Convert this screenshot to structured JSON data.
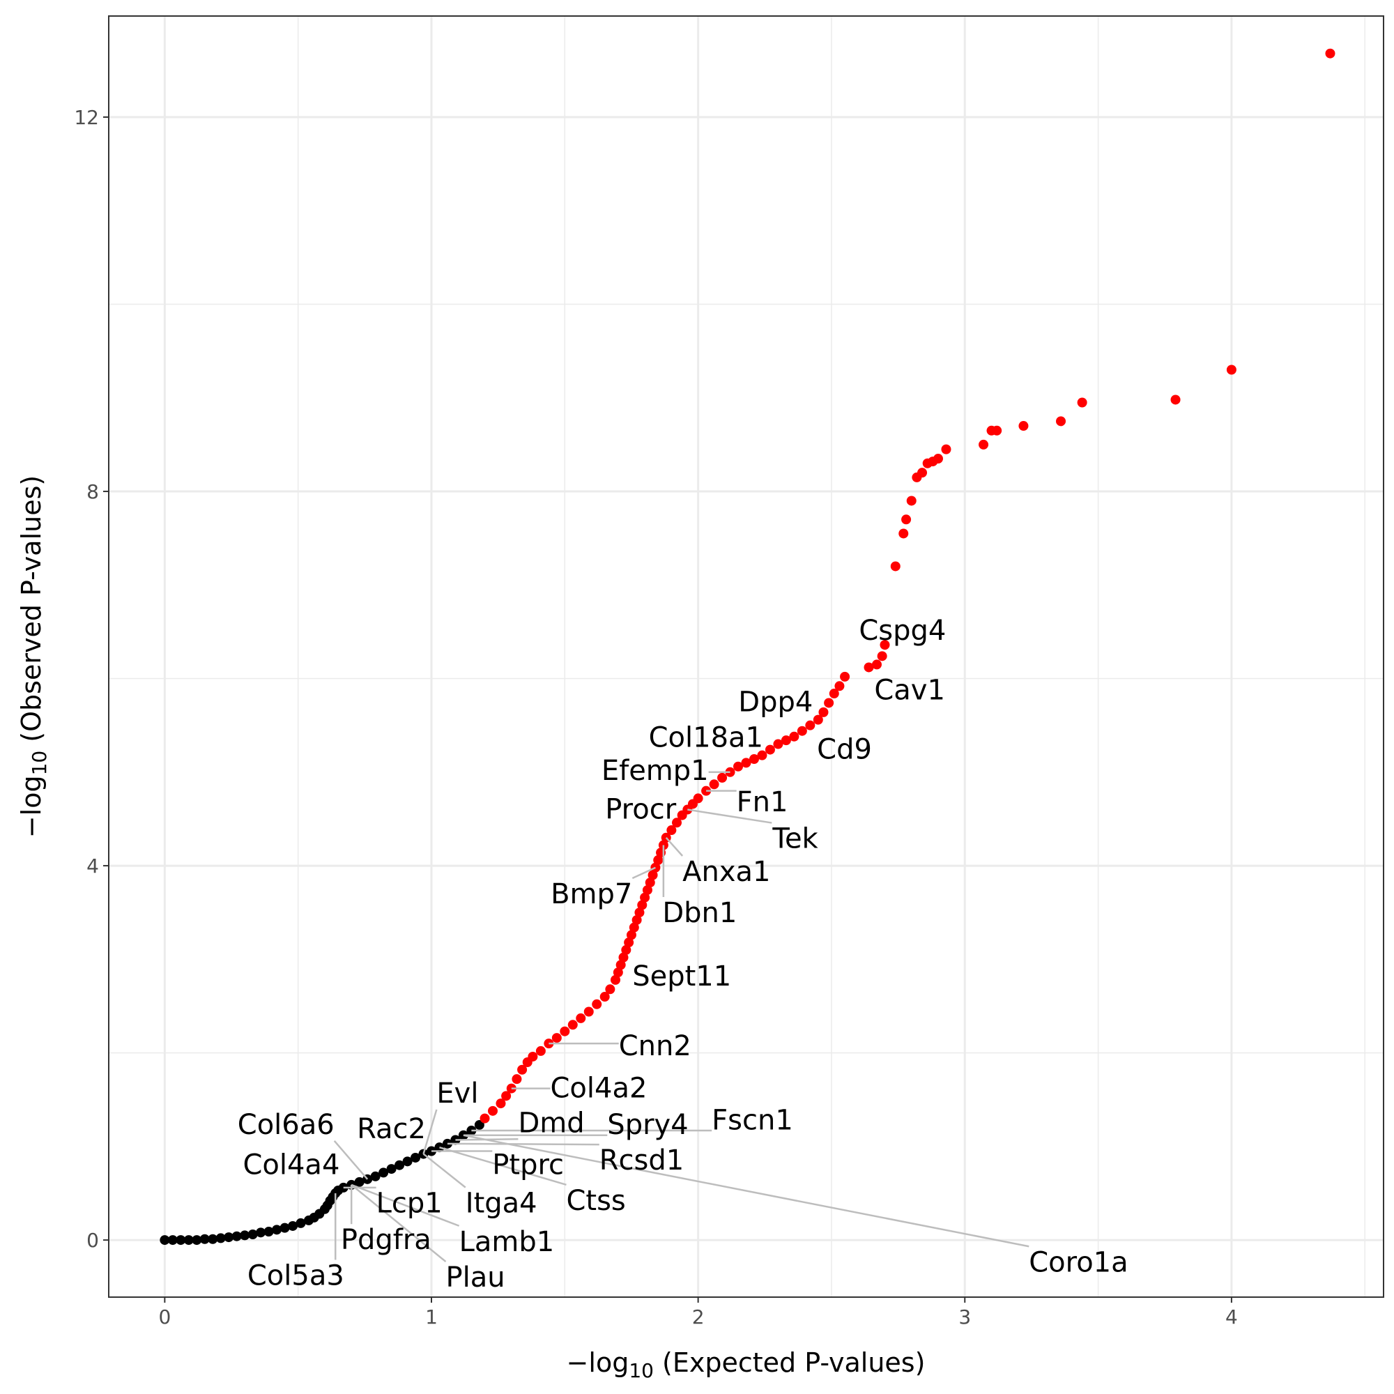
{
  "chart_data": {
    "type": "scatter",
    "xlabel": [
      "−log",
      "10",
      " (Expected P-values)"
    ],
    "ylabel": [
      "−log",
      "10",
      " (Observed P-values)"
    ],
    "xlim": [
      -0.21,
      4.57
    ],
    "ylim": [
      -0.61,
      13.08
    ],
    "xticks": [
      0,
      1,
      2,
      3,
      4
    ],
    "yticks": [
      0,
      4,
      8,
      12
    ],
    "xminorticks": [
      0.5,
      1.5,
      2.5,
      3.5,
      4.5
    ],
    "yminorticks": [
      2,
      6,
      10
    ],
    "grid": true,
    "series": [
      {
        "color": "#000000",
        "x": [
          0,
          0.03,
          0.06,
          0.09,
          0.12,
          0.15,
          0.18,
          0.21,
          0.24,
          0.27,
          0.3,
          0.33,
          0.36,
          0.39,
          0.42,
          0.45,
          0.48,
          0.51,
          0.54,
          0.56,
          0.58,
          0.6,
          0.61,
          0.62,
          0.63,
          0.64,
          0.65,
          0.67,
          0.7,
          0.73,
          0.76,
          0.79,
          0.82,
          0.85,
          0.88,
          0.91,
          0.94,
          0.97,
          1.0,
          1.03,
          1.06,
          1.09,
          1.12,
          1.15,
          1.18
        ],
        "values": [
          0,
          0,
          0,
          0,
          0,
          0.01,
          0.01,
          0.02,
          0.03,
          0.04,
          0.05,
          0.06,
          0.08,
          0.09,
          0.11,
          0.13,
          0.15,
          0.18,
          0.21,
          0.24,
          0.28,
          0.33,
          0.37,
          0.42,
          0.46,
          0.5,
          0.53,
          0.56,
          0.59,
          0.62,
          0.65,
          0.68,
          0.72,
          0.76,
          0.8,
          0.84,
          0.88,
          0.92,
          0.95,
          0.99,
          1.03,
          1.07,
          1.12,
          1.17,
          1.23
        ]
      },
      {
        "color": "#ff0000",
        "x": [
          1.2,
          1.23,
          1.26,
          1.28,
          1.3,
          1.32,
          1.34,
          1.36,
          1.38,
          1.41,
          1.44,
          1.47,
          1.5,
          1.53,
          1.56,
          1.59,
          1.62,
          1.65,
          1.67,
          1.69,
          1.7,
          1.71,
          1.72,
          1.73,
          1.74,
          1.75,
          1.76,
          1.77,
          1.78,
          1.79,
          1.8,
          1.81,
          1.82,
          1.83,
          1.84,
          1.85,
          1.86,
          1.87,
          1.88,
          1.9,
          1.92,
          1.94,
          1.96,
          1.98,
          2.0,
          2.03,
          2.06,
          2.09,
          2.12,
          2.15,
          2.18,
          2.21,
          2.24,
          2.27,
          2.3,
          2.33,
          2.36,
          2.39,
          2.42,
          2.45,
          2.47,
          2.49,
          2.51,
          2.53,
          2.55,
          2.64,
          2.67,
          2.69,
          2.7,
          2.74,
          2.77,
          2.78,
          2.8,
          2.82,
          2.84,
          2.86,
          2.88,
          2.9,
          2.93,
          3.07,
          3.1,
          3.12,
          3.22,
          3.36,
          3.44,
          3.79,
          4.0,
          4.37
        ],
        "values": [
          1.3,
          1.38,
          1.46,
          1.54,
          1.62,
          1.72,
          1.82,
          1.9,
          1.96,
          2.02,
          2.1,
          2.16,
          2.23,
          2.3,
          2.37,
          2.44,
          2.52,
          2.6,
          2.68,
          2.78,
          2.86,
          2.94,
          3.02,
          3.1,
          3.18,
          3.26,
          3.34,
          3.42,
          3.5,
          3.58,
          3.66,
          3.74,
          3.82,
          3.9,
          3.98,
          4.06,
          4.14,
          4.22,
          4.3,
          4.38,
          4.46,
          4.54,
          4.6,
          4.66,
          4.72,
          4.8,
          4.87,
          4.94,
          5.0,
          5.06,
          5.1,
          5.14,
          5.18,
          5.24,
          5.3,
          5.34,
          5.38,
          5.44,
          5.5,
          5.56,
          5.64,
          5.74,
          5.84,
          5.92,
          6.02,
          6.12,
          6.15,
          6.24,
          6.36,
          7.2,
          7.55,
          7.7,
          7.9,
          8.15,
          8.2,
          8.3,
          8.32,
          8.35,
          8.45,
          8.5,
          8.65,
          8.65,
          8.7,
          8.75,
          8.95,
          8.98,
          9.3,
          12.68
        ]
      }
    ],
    "annotations": [
      {
        "text": "Cspg4",
        "x": 2.7,
        "y": 6.36
      },
      {
        "text": "Cav1",
        "x": 2.64,
        "y": 6.12
      },
      {
        "text": "Dpp4",
        "x": 2.47,
        "y": 5.64
      },
      {
        "text": "Col18a1",
        "x": 2.3,
        "y": 5.3
      },
      {
        "text": "Cd9",
        "x": 2.42,
        "y": 5.5
      },
      {
        "text": "Efemp1",
        "x": 2.12,
        "y": 5.0
      },
      {
        "text": "Fn1",
        "x": 2.03,
        "y": 4.8
      },
      {
        "text": "Procr",
        "x": 1.96,
        "y": 4.6
      },
      {
        "text": "Tek",
        "x": 1.96,
        "y": 4.6
      },
      {
        "text": "Anxa1",
        "x": 1.88,
        "y": 4.3
      },
      {
        "text": "Bmp7",
        "x": 1.84,
        "y": 3.98
      },
      {
        "text": "Dbn1",
        "x": 1.87,
        "y": 4.22
      },
      {
        "text": "Sept11",
        "x": 1.72,
        "y": 3.02
      },
      {
        "text": "Cnn2",
        "x": 1.44,
        "y": 2.1
      },
      {
        "text": "Col4a2",
        "x": 1.3,
        "y": 1.62
      },
      {
        "text": "Evl",
        "x": 0.97,
        "y": 0.92
      },
      {
        "text": "Dmd",
        "x": 1.09,
        "y": 1.07
      },
      {
        "text": "Spry4",
        "x": 1.12,
        "y": 1.12
      },
      {
        "text": "Fscn1",
        "x": 1.15,
        "y": 1.17
      },
      {
        "text": "Col6a6",
        "x": 0.76,
        "y": 0.65
      },
      {
        "text": "Rac2",
        "x": 0.94,
        "y": 0.88
      },
      {
        "text": "Col4a4",
        "x": 0.67,
        "y": 0.56
      },
      {
        "text": "Ptprc",
        "x": 1.0,
        "y": 0.95
      },
      {
        "text": "Rcsd1",
        "x": 1.06,
        "y": 1.03
      },
      {
        "text": "Lcp1",
        "x": 0.67,
        "y": 0.56
      },
      {
        "text": "Itga4",
        "x": 0.97,
        "y": 0.92
      },
      {
        "text": "Ctss",
        "x": 1.03,
        "y": 0.99
      },
      {
        "text": "Pdgfra",
        "x": 0.7,
        "y": 0.59
      },
      {
        "text": "Lamb1",
        "x": 0.7,
        "y": 0.59
      },
      {
        "text": "Coro1a",
        "x": 1.12,
        "y": 1.12
      },
      {
        "text": "Col5a3",
        "x": 0.64,
        "y": 0.5
      },
      {
        "text": "Plau",
        "x": 0.7,
        "y": 0.59
      }
    ]
  }
}
